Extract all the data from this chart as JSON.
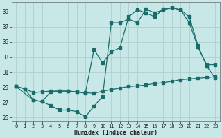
{
  "xlabel": "Humidex (Indice chaleur)",
  "bg_color": "#c8e8e8",
  "line_color": "#1a6b6b",
  "grid_color": "#b0d0d0",
  "xlim": [
    -0.5,
    23.5
  ],
  "ylim": [
    24.5,
    40.2
  ],
  "xticks": [
    0,
    1,
    2,
    3,
    4,
    5,
    6,
    7,
    8,
    9,
    10,
    11,
    12,
    13,
    14,
    15,
    16,
    17,
    18,
    19,
    20,
    21,
    22,
    23
  ],
  "yticks": [
    25,
    27,
    29,
    31,
    33,
    35,
    37,
    39
  ],
  "line1_x": [
    0,
    1,
    2,
    3,
    4,
    5,
    6,
    7,
    8,
    9,
    10,
    11,
    12,
    13,
    14,
    15,
    16,
    17,
    18,
    19,
    20,
    21,
    22,
    23
  ],
  "line1_y": [
    29.1,
    28.8,
    28.3,
    28.4,
    28.5,
    28.5,
    28.5,
    28.4,
    28.3,
    28.2,
    28.5,
    28.7,
    28.9,
    29.1,
    29.2,
    29.3,
    29.5,
    29.6,
    29.8,
    30.0,
    30.1,
    30.2,
    30.3,
    30.4
  ],
  "line2_x": [
    0,
    2,
    3,
    4,
    5,
    6,
    7,
    8,
    9,
    10,
    11,
    12,
    13,
    14,
    15,
    16,
    17,
    18,
    19,
    20,
    21,
    22,
    23
  ],
  "line2_y": [
    29.1,
    27.3,
    27.1,
    26.6,
    26.0,
    26.0,
    25.8,
    25.1,
    26.5,
    27.8,
    37.5,
    37.5,
    38.0,
    37.5,
    39.3,
    38.8,
    39.2,
    39.5,
    39.2,
    37.5,
    34.3,
    32.0,
    32.0
  ],
  "line3_x": [
    0,
    1,
    2,
    3,
    4,
    5,
    6,
    7,
    8,
    9,
    10,
    11,
    12,
    13,
    14,
    15,
    16,
    17,
    18,
    19,
    20,
    21,
    22,
    23
  ],
  "line3_y": [
    29.1,
    28.8,
    27.3,
    27.1,
    28.4,
    28.5,
    28.5,
    28.4,
    28.2,
    34.0,
    32.2,
    33.7,
    34.2,
    38.3,
    39.2,
    38.8,
    38.3,
    39.3,
    39.5,
    39.2,
    38.3,
    34.5,
    31.8,
    30.2
  ]
}
